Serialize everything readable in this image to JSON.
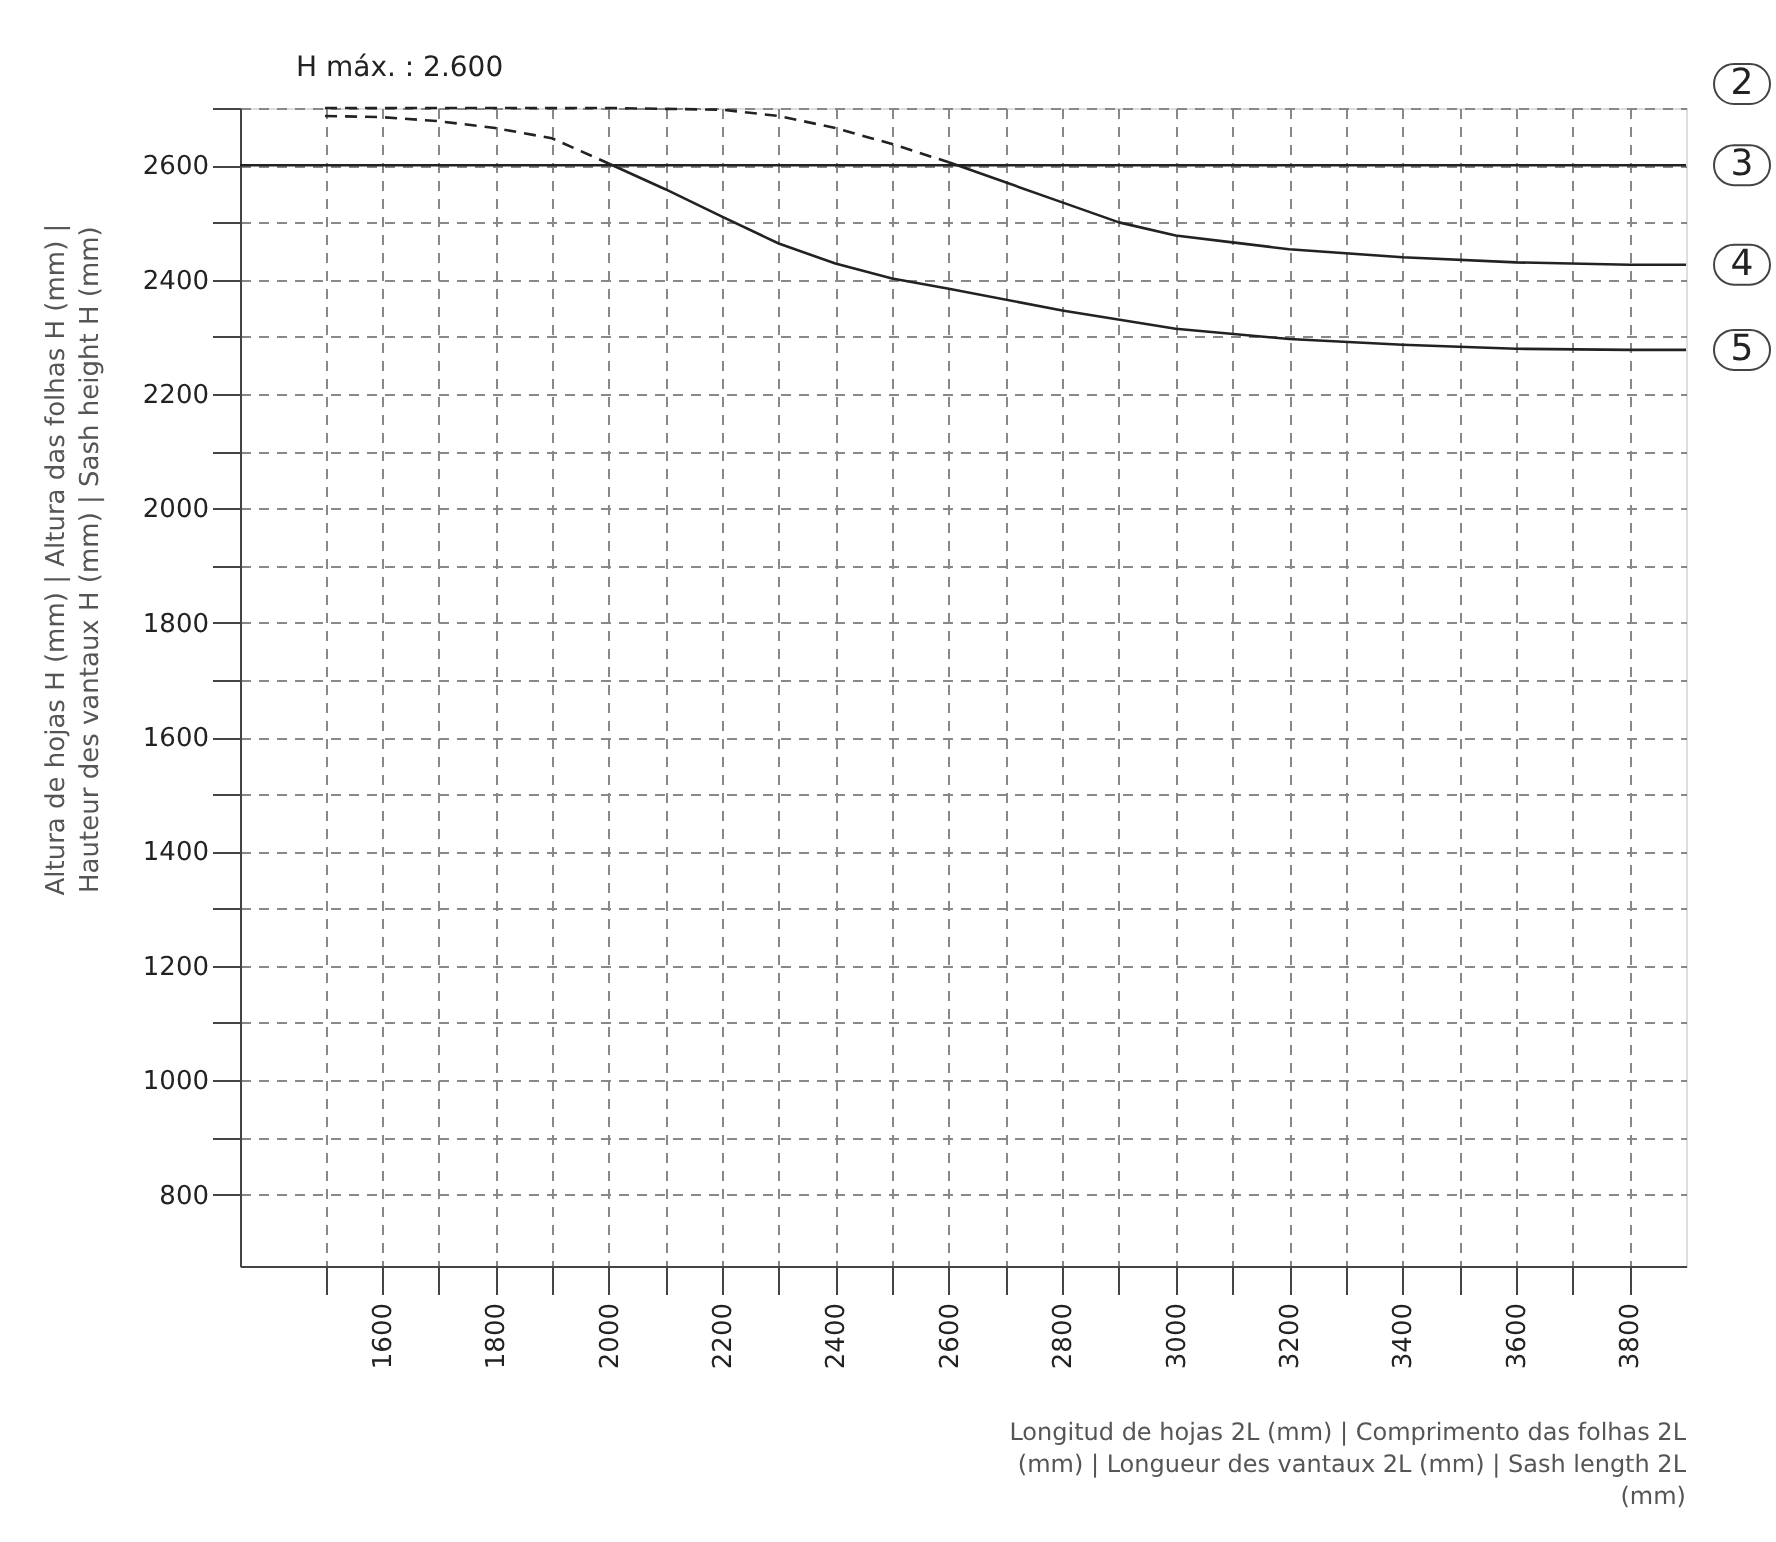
{
  "chart_data": {
    "type": "line",
    "xlabel": "Longitud de hojas 2L (mm) | Comprimento das folhas 2L\n(mm) | Longueur des vantaux 2L (mm) | Sash length 2L\n(mm)",
    "ylabel": "Altura de hojas H (mm) | Altura das folhas H (mm) |\nHauteur des vantaux H (mm) | Sash height H (mm)",
    "xlim": [
      1350,
      3900
    ],
    "ylim": [
      675,
      2700
    ],
    "xticks": [
      {
        "value": 1500,
        "label": null
      },
      1600,
      {
        "value": 1700,
        "label": null
      },
      1800,
      {
        "value": 1900,
        "label": null
      },
      2000,
      {
        "value": 2100,
        "label": null
      },
      2200,
      {
        "value": 2300,
        "label": null
      },
      2400,
      {
        "value": 2500,
        "label": null
      },
      2600,
      {
        "value": 2700,
        "label": null
      },
      2800,
      {
        "value": 2900,
        "label": null
      },
      3000,
      {
        "value": 3100,
        "label": null
      },
      3200,
      {
        "value": 3300,
        "label": null
      },
      3400,
      {
        "value": 3500,
        "label": null
      },
      3600,
      {
        "value": 3700,
        "label": null
      },
      3800
    ],
    "yticks": [
      800,
      {
        "value": 900,
        "label": null
      },
      1000,
      {
        "value": 1100,
        "label": null
      },
      1200,
      {
        "value": 1300,
        "label": null
      },
      1400,
      {
        "value": 1500,
        "label": null
      },
      1600,
      {
        "value": 1700,
        "label": null
      },
      1800,
      {
        "value": 1900,
        "label": null
      },
      2000,
      {
        "value": 2100,
        "label": null
      },
      2200,
      {
        "value": 2300,
        "label": null
      },
      2400,
      {
        "value": 2500,
        "label": null
      },
      2600,
      {
        "value": 2700,
        "label": null
      }
    ],
    "grid": true,
    "marker": "none",
    "series": [
      {
        "color": "#222222",
        "line_style": "dashed",
        "x": [
          1500,
          1600,
          1700,
          1800,
          1900,
          2000
        ],
        "values": [
          2686,
          2684,
          2677,
          2665,
          2647,
          2603
        ]
      },
      {
        "name": "5",
        "color": "#222222",
        "line_style": "solid",
        "x": [
          2000,
          2100,
          2200,
          2300,
          2400,
          2500,
          2600,
          2800,
          3000,
          3200,
          3400,
          3600,
          3800,
          3900
        ],
        "values": [
          2603,
          2558,
          2510,
          2463,
          2428,
          2402,
          2384,
          2346,
          2314,
          2296,
          2286,
          2279,
          2277,
          2277
        ]
      },
      {
        "color": "#222222",
        "line_style": "dashed",
        "x": [
          1500,
          1800,
          2000,
          2200,
          2300,
          2400,
          2500,
          2600
        ],
        "values": [
          2700,
          2700,
          2700,
          2697,
          2686,
          2665,
          2637,
          2605
        ]
      },
      {
        "name": "4",
        "color": "#222222",
        "line_style": "solid",
        "x": [
          2600,
          2700,
          2800,
          2900,
          3000,
          3100,
          3200,
          3400,
          3600,
          3800,
          3900
        ],
        "values": [
          2605,
          2570,
          2535,
          2500,
          2477,
          2465,
          2453,
          2439,
          2430,
          2426,
          2426
        ]
      }
    ],
    "ref_lines": [
      {
        "axis": "y",
        "value": 2600,
        "color": "#222222",
        "line_style": "solid"
      }
    ],
    "annotations": [
      "H máx. : 2.600",
      "2",
      {
        "text": "3",
        "x": 3900,
        "y": 2600
      }
    ]
  }
}
